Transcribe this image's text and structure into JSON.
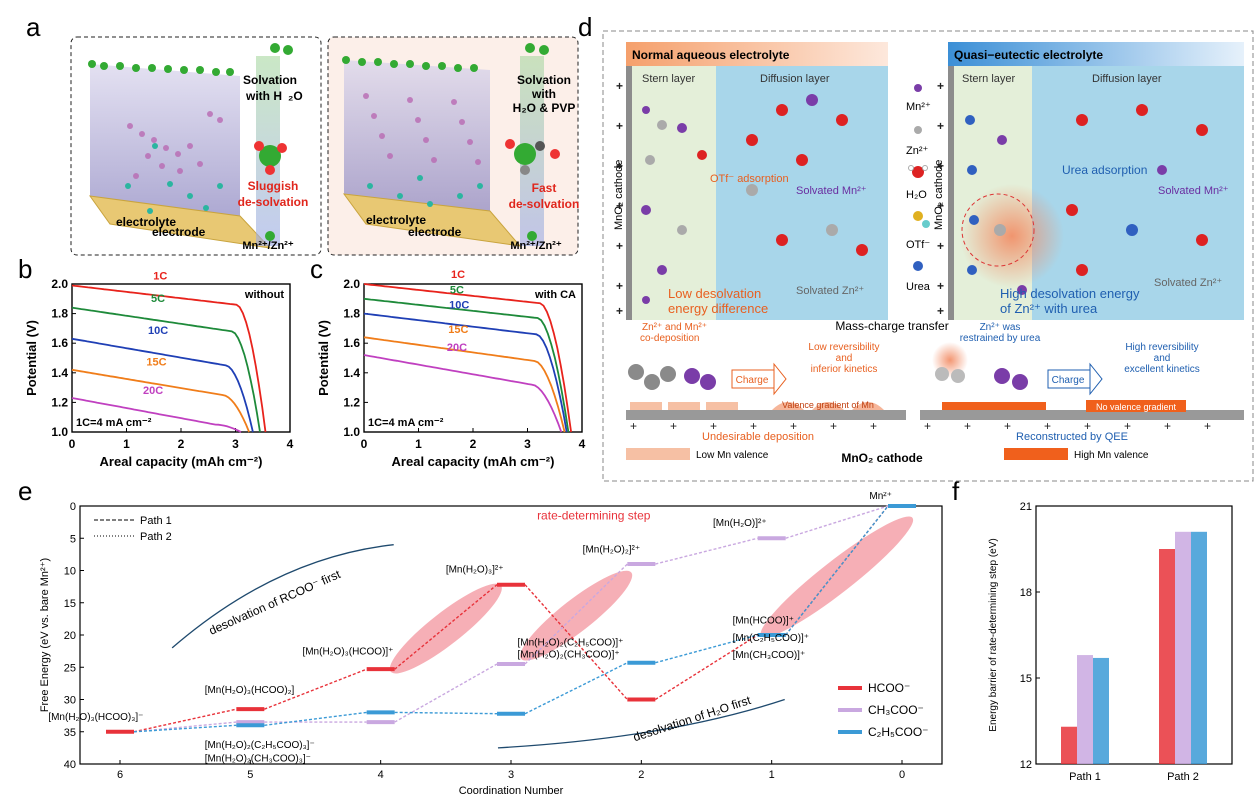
{
  "panel_labels": {
    "a": "a",
    "b": "b",
    "c": "c",
    "d": "d",
    "e": "e",
    "f": "f"
  },
  "panel_a": {
    "left": {
      "solvation": "Solvation",
      "with": "with  H",
      "water": "₂O",
      "sluggish": "Sluggish",
      "desolvation": "de-solvation",
      "electrolyte": "electrolyte",
      "electrode": "electrode",
      "ions": "Mn²⁺/Zn²⁺"
    },
    "right": {
      "solvation": "Solvation",
      "with": "with",
      "agents": "H₂O & PVP",
      "fast": "Fast",
      "desolvation": "de-solvation",
      "electrolyte": "electrolyte",
      "electrode": "electrode",
      "ions": "Mn²⁺/Zn²⁺"
    }
  },
  "chart_data": [
    {
      "id": "b",
      "type": "line",
      "condition": "without",
      "note": "1C=4 mA cm⁻²",
      "xlabel": "Areal capacity (mAh cm⁻²)",
      "ylabel": "Potential (V)",
      "xlim": [
        0,
        4
      ],
      "ylim": [
        1.0,
        2.0
      ],
      "xticks": [
        "0",
        "1",
        "2",
        "3",
        "4"
      ],
      "yticks": [
        "1.0",
        "1.2",
        "1.4",
        "1.6",
        "1.8",
        "2.0"
      ],
      "series": [
        {
          "name": "1C",
          "color": "#e8231c",
          "start": 1.99,
          "end_cap": 3.55,
          "plateau": 1.86
        },
        {
          "name": "5C",
          "color": "#1e8a3a",
          "start": 1.84,
          "end_cap": 3.45,
          "plateau": 1.68
        },
        {
          "name": "10C",
          "color": "#1f3fb5",
          "start": 1.63,
          "end_cap": 3.32,
          "plateau": 1.45
        },
        {
          "name": "15C",
          "color": "#f07d1a",
          "start": 1.42,
          "end_cap": 3.25,
          "plateau": 1.25
        },
        {
          "name": "20C",
          "color": "#c040c0",
          "start": 1.23,
          "end_cap": 3.1,
          "plateau": 1.05
        }
      ]
    },
    {
      "id": "c",
      "type": "line",
      "condition": "with CA",
      "note": "1C=4 mA cm⁻²",
      "xlabel": "Areal capacity (mAh cm⁻²)",
      "ylabel": "Potential (V)",
      "xlim": [
        0,
        4
      ],
      "ylim": [
        1.0,
        2.0
      ],
      "xticks": [
        "0",
        "1",
        "2",
        "3",
        "4"
      ],
      "yticks": [
        "1.0",
        "1.2",
        "1.4",
        "1.6",
        "1.8",
        "2.0"
      ],
      "series": [
        {
          "name": "1C",
          "color": "#e8231c",
          "start": 2.0,
          "end_cap": 3.8,
          "plateau": 1.87
        },
        {
          "name": "5C",
          "color": "#1e8a3a",
          "start": 1.9,
          "end_cap": 3.75,
          "plateau": 1.77
        },
        {
          "name": "10C",
          "color": "#1f3fb5",
          "start": 1.8,
          "end_cap": 3.72,
          "plateau": 1.66
        },
        {
          "name": "15C",
          "color": "#f07d1a",
          "start": 1.64,
          "end_cap": 3.68,
          "plateau": 1.48
        },
        {
          "name": "20C",
          "color": "#c040c0",
          "start": 1.52,
          "end_cap": 3.62,
          "plateau": 1.32
        }
      ]
    },
    {
      "id": "e",
      "type": "line",
      "xlabel": "Coordination Number",
      "ylabel": "Free Energy (eV vs. bare Mn²⁺)",
      "xticks": [
        "6",
        "5",
        "4",
        "3",
        "2",
        "1",
        "0"
      ],
      "yticks": [
        "0",
        "5",
        "10",
        "15",
        "20",
        "25",
        "30",
        "35",
        "40"
      ],
      "ylim": [
        0,
        40
      ],
      "path_legend": [
        "Path 1",
        "Path 2"
      ],
      "anion_legend": [
        {
          "name": "HCOO⁻",
          "color": "#e8323a"
        },
        {
          "name": "CH₃COO⁻",
          "color": "#c9a8e0"
        },
        {
          "name": "C₂H₅COO⁻",
          "color": "#3b9ad6"
        }
      ],
      "rds_label": "rate-determining step",
      "arrow_labels": {
        "top": "desolvation of RCOO⁻ first",
        "bottom": "desolvation of H₂O first"
      },
      "levels": [
        {
          "cn": 6,
          "anion": "HCOO⁻",
          "energy": 35
        },
        {
          "cn": 5,
          "anion": "HCOO⁻",
          "energy": 31.5
        },
        {
          "cn": 5,
          "anion": "CH₃COO⁻",
          "energy": 33.5
        },
        {
          "cn": 5,
          "anion": "C₂H₅COO⁻",
          "energy": 34
        },
        {
          "cn": 4,
          "anion": "HCOO⁻",
          "energy": 25.3
        },
        {
          "cn": 4,
          "anion": "CH₃COO⁻",
          "energy": 33.5
        },
        {
          "cn": 4,
          "anion": "C₂H₅COO⁻",
          "energy": 32
        },
        {
          "cn": 3,
          "anion": "HCOO⁻",
          "energy": 12.2
        },
        {
          "cn": 3,
          "anion": "CH₃COO⁻",
          "energy": 24.5
        },
        {
          "cn": 3,
          "anion": "C₂H₅COO⁻",
          "energy": 32.2
        },
        {
          "cn": 2,
          "anion": "HCOO⁻",
          "energy": 30
        },
        {
          "cn": 2,
          "anion": "CH₃COO⁻",
          "energy": 9
        },
        {
          "cn": 2,
          "anion": "C₂H₅COO⁻",
          "energy": 24.3
        },
        {
          "cn": 1,
          "anion": "HCOO⁻",
          "energy": 20
        },
        {
          "cn": 1,
          "anion": "CH₃COO⁻",
          "energy": 5
        },
        {
          "cn": 1,
          "anion": "C₂H₅COO⁻",
          "energy": 20
        },
        {
          "cn": 0,
          "anion": "HCOO⁻",
          "energy": 0
        },
        {
          "cn": 0,
          "anion": "CH₃COO⁻",
          "energy": 0
        },
        {
          "cn": 0,
          "anion": "C₂H₅COO⁻",
          "energy": 0
        }
      ],
      "species": [
        "[Mn(H₂O)₃(HCOO)₃]⁻",
        "[Mn(H₂O)₃(HCOO)₂]",
        "[Mn(H₂O)₂(C₂H₅COO)₃]⁻",
        "[Mn(H₂O)₂(CH₃COO)₃]⁻",
        "[Mn(H₂O)₃(HCOO)]⁺",
        "[Mn(H₂O)₃]²⁺",
        "[Mn(H₂O)₂]²⁺",
        "[Mn(H₂O)]²⁺",
        "Mn²⁺",
        "[Mn(H₂O)₂(C₂H₅COO)]⁺",
        "[Mn(H₂O)₂(CH₃COO)]⁺",
        "[Mn(HCOO)]⁺",
        "[Mn(C₂H₅COO)]⁺",
        "[Mn(CH₃COO)]⁺"
      ]
    },
    {
      "id": "f",
      "type": "bar",
      "ylabel": "Energy barrier of rate-determining step (eV)",
      "categories": [
        "Path 1",
        "Path 2"
      ],
      "ylim": [
        12,
        21
      ],
      "yticks": [
        "12",
        "15",
        "18",
        "21"
      ],
      "series": [
        {
          "name": "HCOO⁻",
          "color": "#e8323a",
          "values": [
            13.3,
            19.5
          ]
        },
        {
          "name": "CH₃COO⁻",
          "color": "#c9a8e0",
          "values": [
            15.8,
            20.1
          ]
        },
        {
          "name": "C₂H₅COO⁻",
          "color": "#3b9ad6",
          "values": [
            15.7,
            20.1
          ]
        }
      ]
    }
  ],
  "panel_d": {
    "left_title": "Normal aqueous electrolyte",
    "right_title": "Quasi−eutectic  electrolyte",
    "stern": "Stern layer",
    "diffusion": "Diffusion layer",
    "cathode": "MnO₂ cathode",
    "otf_adsorption": "OTf⁻ adsorption",
    "solvated_mn": "Solvated Mn²⁺",
    "solvated_zn": "Solvated Zn²⁺",
    "low_desolv": "Low desolvation\nenergy difference",
    "urea_adsorption": "Urea adsorption",
    "high_desolv": "High desolvation energy\nof Zn²⁺ with urea",
    "legend": [
      "Mn²⁺",
      "Zn²⁺",
      "H₂O",
      "OTf⁻",
      "Urea"
    ],
    "mass_charge": "Mass-charge transfer",
    "codep": "Zn²⁺ and Mn²⁺\nco-deposition",
    "charge": "Charge",
    "low_rev": "Low reversibility\nand\ninferior kinetics",
    "valence_grad": "Valence gradient of Mn",
    "undesirable": "Undesirable deposition",
    "restrained": "Zn²⁺ was\nrestrained by urea",
    "high_rev": "High reversibility\nand\nexcellent kinetics",
    "no_gradient": "No valence gradient",
    "reconstructed": "Reconstructed by QEE",
    "low_mn": "Low Mn valence",
    "high_mn": "High Mn valence",
    "mno2": "MnO₂ cathode"
  }
}
